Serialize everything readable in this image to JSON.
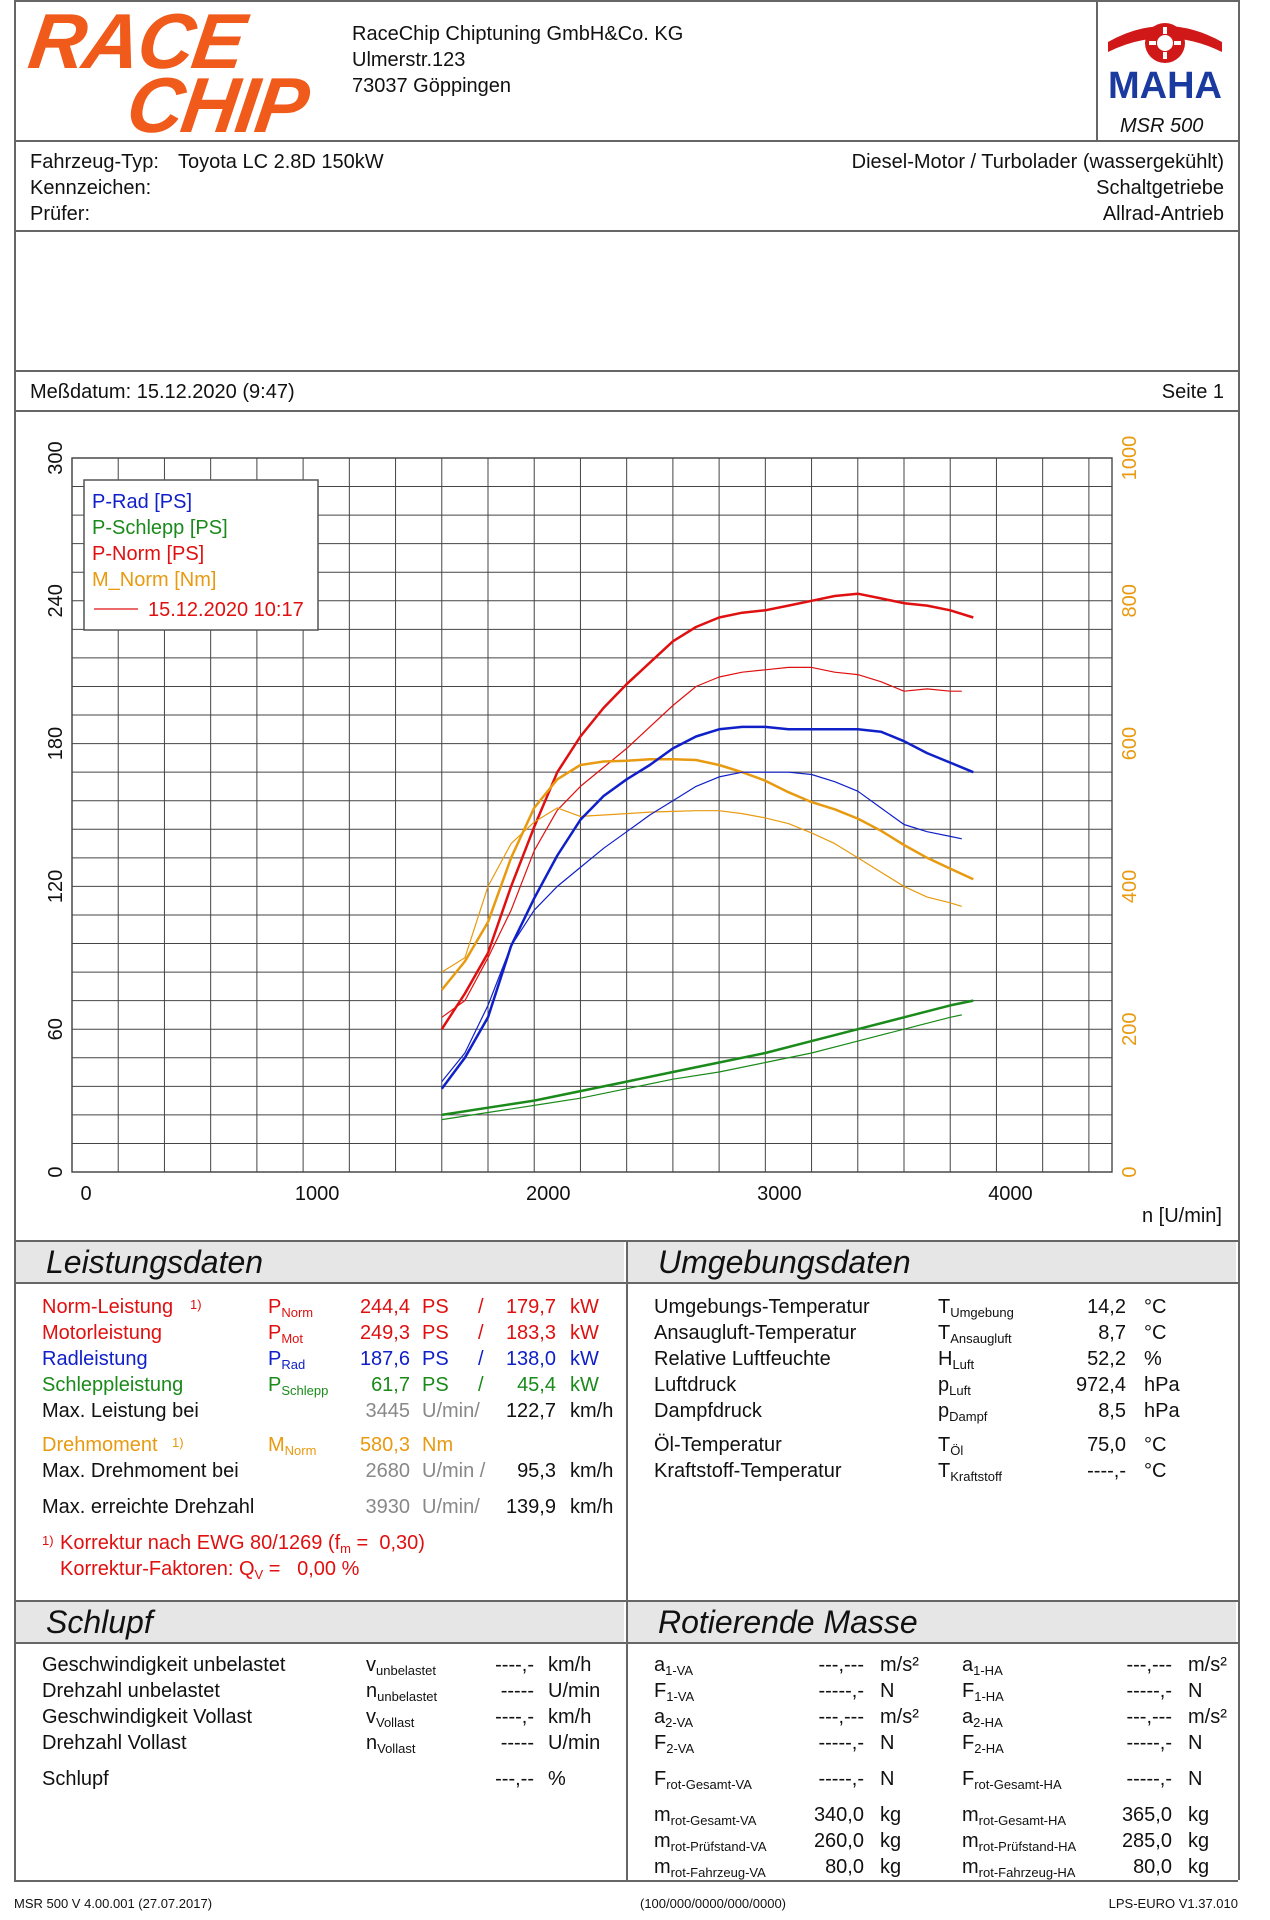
{
  "header": {
    "company": [
      "RaceChip Chiptuning GmbH&Co. KG",
      "Ulmerstr.123",
      "73037 Göppingen"
    ],
    "logo_text": [
      "RACE",
      "CHIP"
    ],
    "maha_logo": "MAHA",
    "device": "MSR 500"
  },
  "vehicle": {
    "type_label": "Fahrzeug-Typ:",
    "type_value": "Toyota LC 2.8D 150kW",
    "plate_label": "Kennzeichen:",
    "inspector_label": "Prüfer:",
    "engine": "Diesel-Motor / Turbolader (wassergekühlt)",
    "gearbox": "Schaltgetriebe",
    "drive": "Allrad-Antrieb"
  },
  "measure": {
    "date_label": "Meßdatum: 15.12.2020 (9:47)",
    "page_label": "Seite 1"
  },
  "chart_data": {
    "type": "line",
    "x_label": "n [U/min]",
    "x_ticks": [
      "0",
      "1000",
      "2000",
      "3000",
      "4000"
    ],
    "xlim": [
      0,
      4500
    ],
    "y_left_ticks": [
      "0",
      "60",
      "120",
      "180",
      "240",
      "300"
    ],
    "ylim_left": [
      0,
      300
    ],
    "y_right_ticks": [
      "0",
      "200",
      "400",
      "600",
      "800",
      "1000"
    ],
    "ylim_right": [
      0,
      1000
    ],
    "legend": [
      {
        "label": "P-Rad [PS]",
        "color": "#1020c8"
      },
      {
        "label": "P-Schlepp [PS]",
        "color": "#1a8a1a"
      },
      {
        "label": "P-Norm [PS]",
        "color": "#e01010"
      },
      {
        "label": "M_Norm [Nm]",
        "color": "#e89a10"
      },
      {
        "label": "15.12.2020 10:17",
        "color": "#e01010"
      }
    ],
    "series": [
      {
        "name": "P-Norm current",
        "axis": "left",
        "color": "#e01010",
        "width": 2.5,
        "x": [
          1600,
          1700,
          1800,
          1900,
          2000,
          2100,
          2200,
          2300,
          2400,
          2500,
          2600,
          2700,
          2800,
          2900,
          3000,
          3100,
          3200,
          3300,
          3400,
          3500,
          3600,
          3700,
          3800,
          3900
        ],
        "y": [
          60,
          75,
          92,
          120,
          145,
          168,
          183,
          195,
          205,
          214,
          223,
          229,
          233,
          235,
          236,
          238,
          240,
          242,
          243,
          241,
          239,
          238,
          236,
          233
        ]
      },
      {
        "name": "P-Norm ref",
        "axis": "left",
        "color": "#e01010",
        "width": 1.2,
        "x": [
          1600,
          1700,
          1800,
          1900,
          2000,
          2100,
          2200,
          2300,
          2400,
          2500,
          2600,
          2700,
          2800,
          2900,
          3000,
          3100,
          3200,
          3300,
          3400,
          3500,
          3600,
          3700,
          3800,
          3850
        ],
        "y": [
          65,
          72,
          90,
          110,
          135,
          152,
          162,
          170,
          178,
          187,
          196,
          204,
          208,
          210,
          211,
          212,
          212,
          210,
          209,
          206,
          202,
          203,
          202,
          202
        ]
      },
      {
        "name": "M_Norm current",
        "axis": "right",
        "color": "#e89a10",
        "width": 2.5,
        "x": [
          1600,
          1700,
          1800,
          1900,
          2000,
          2100,
          2200,
          2300,
          2400,
          2500,
          2600,
          2700,
          2800,
          2900,
          3000,
          3100,
          3200,
          3300,
          3400,
          3500,
          3600,
          3700,
          3800,
          3900
        ],
        "y": [
          255,
          295,
          350,
          440,
          510,
          550,
          570,
          575,
          576,
          578,
          578,
          577,
          570,
          560,
          548,
          532,
          518,
          508,
          495,
          478,
          458,
          440,
          425,
          410
        ]
      },
      {
        "name": "M_Norm ref",
        "axis": "right",
        "color": "#e89a10",
        "width": 1.2,
        "x": [
          1600,
          1700,
          1800,
          1900,
          2000,
          2100,
          2200,
          2300,
          2400,
          2500,
          2600,
          2700,
          2800,
          2900,
          3000,
          3100,
          3200,
          3300,
          3400,
          3500,
          3600,
          3700,
          3800,
          3850
        ],
        "y": [
          280,
          300,
          400,
          460,
          490,
          510,
          498,
          500,
          502,
          504,
          505,
          506,
          506,
          502,
          496,
          488,
          475,
          460,
          440,
          420,
          400,
          385,
          377,
          372
        ]
      },
      {
        "name": "P-Rad current",
        "axis": "left",
        "color": "#1020c8",
        "width": 2.5,
        "x": [
          1600,
          1700,
          1800,
          1900,
          2000,
          2100,
          2200,
          2300,
          2400,
          2500,
          2600,
          2700,
          2800,
          2900,
          3000,
          3100,
          3200,
          3300,
          3400,
          3500,
          3600,
          3700,
          3800,
          3900
        ],
        "y": [
          35,
          48,
          65,
          95,
          115,
          133,
          148,
          158,
          165,
          171,
          178,
          183,
          186,
          187,
          187,
          186,
          186,
          186,
          186,
          185,
          181,
          176,
          172,
          168
        ]
      },
      {
        "name": "P-Rad ref",
        "axis": "left",
        "color": "#1020c8",
        "width": 1.2,
        "x": [
          1600,
          1700,
          1800,
          1900,
          2000,
          2100,
          2200,
          2300,
          2400,
          2500,
          2600,
          2700,
          2800,
          2900,
          3000,
          3100,
          3200,
          3300,
          3400,
          3500,
          3600,
          3700,
          3800,
          3850
        ],
        "y": [
          38,
          50,
          70,
          95,
          110,
          120,
          128,
          136,
          143,
          150,
          156,
          162,
          166,
          168,
          168,
          168,
          167,
          164,
          160,
          153,
          146,
          143,
          141,
          140
        ]
      },
      {
        "name": "P-Schlepp current",
        "axis": "left",
        "color": "#1a8a1a",
        "width": 2.5,
        "x": [
          1600,
          1800,
          2000,
          2200,
          2400,
          2600,
          2800,
          3000,
          3200,
          3400,
          3600,
          3800,
          3900
        ],
        "y": [
          24,
          27,
          30,
          34,
          38,
          42,
          46,
          50,
          55,
          60,
          65,
          70,
          72
        ]
      },
      {
        "name": "P-Schlepp ref",
        "axis": "left",
        "color": "#1a8a1a",
        "width": 1.2,
        "x": [
          1600,
          1800,
          2000,
          2200,
          2400,
          2600,
          2800,
          3000,
          3200,
          3400,
          3600,
          3800,
          3850
        ],
        "y": [
          22,
          25,
          28,
          31,
          35,
          39,
          42,
          46,
          50,
          55,
          60,
          65,
          66
        ]
      }
    ]
  },
  "leistung": {
    "title": "Leistungsdaten",
    "rows": [
      {
        "label": "Norm-Leistung",
        "note": "1)",
        "sym": "P",
        "sub": "Norm",
        "v1": "244,4",
        "u1": "PS",
        "sep": "/",
        "v2": "179,7",
        "u2": "kW"
      },
      {
        "label": "Motorleistung",
        "note": "",
        "sym": "P",
        "sub": "Mot",
        "v1": "249,3",
        "u1": "PS",
        "sep": "/",
        "v2": "183,3",
        "u2": "kW"
      },
      {
        "label": "Radleistung",
        "note": "",
        "sym": "P",
        "sub": "Rad",
        "v1": "187,6",
        "u1": "PS",
        "sep": "/",
        "v2": "138,0",
        "u2": "kW"
      },
      {
        "label": "Schleppleistung",
        "note": "",
        "sym": "P",
        "sub": "Schlepp",
        "v1": "61,7",
        "u1": "PS",
        "sep": "/",
        "v2": "45,4",
        "u2": "kW"
      }
    ],
    "max_power": {
      "label": "Max. Leistung bei",
      "rpm": "3445",
      "rpm_unit": "U/min/",
      "speed": "122,7",
      "speed_unit": "km/h"
    },
    "torque": {
      "label": "Drehmoment",
      "note": "1)",
      "sym": "M",
      "sub": "Norm",
      "value": "580,3",
      "unit": "Nm"
    },
    "max_torque": {
      "label": "Max. Drehmoment bei",
      "rpm": "2680",
      "rpm_unit": "U/min /",
      "speed": "95,3",
      "speed_unit": "km/h"
    },
    "max_rpm": {
      "label": "Max. erreichte Drehzahl",
      "rpm": "3930",
      "rpm_unit": "U/min/",
      "speed": "139,9",
      "speed_unit": "km/h"
    },
    "correction_note": "1)",
    "correction1_text": "Korrektur nach EWG 80/1269 (f",
    "correction1_sub": "m",
    "correction1_tail": " =  0,30)",
    "correction2_text": "Korrektur-Faktoren: Q",
    "correction2_sub": "V",
    "correction2_tail": " =   0,00 %"
  },
  "umgebung": {
    "title": "Umgebungsdaten",
    "rows": [
      {
        "label": "Umgebungs-Temperatur",
        "sym": "T",
        "sub": "Umgebung",
        "value": "14,2",
        "unit": "°C"
      },
      {
        "label": "Ansaugluft-Temperatur",
        "sym": "T",
        "sub": "Ansaugluft",
        "value": "8,7",
        "unit": "°C"
      },
      {
        "label": "Relative Luftfeuchte",
        "sym": "H",
        "sub": "Luft",
        "value": "52,2",
        "unit": "%"
      },
      {
        "label": "Luftdruck",
        "sym": "p",
        "sub": "Luft",
        "value": "972,4",
        "unit": "hPa"
      },
      {
        "label": "Dampfdruck",
        "sym": "p",
        "sub": "Dampf",
        "value": "8,5",
        "unit": "hPa"
      },
      {
        "label": "Öl-Temperatur",
        "sym": "T",
        "sub": "Öl",
        "value": "75,0",
        "unit": "°C"
      },
      {
        "label": "Kraftstoff-Temperatur",
        "sym": "T",
        "sub": "Kraftstoff",
        "value": "----,-",
        "unit": "°C"
      }
    ]
  },
  "schlupf": {
    "title": "Schlupf",
    "rows": [
      {
        "label": "Geschwindigkeit unbelastet",
        "sym": "v",
        "sub": "unbelastet",
        "value": "----,-",
        "unit": "km/h"
      },
      {
        "label": "Drehzahl unbelastet",
        "sym": "n",
        "sub": "unbelastet",
        "value": "-----",
        "unit": "U/min"
      },
      {
        "label": "Geschwindigkeit Vollast",
        "sym": "v",
        "sub": "Vollast",
        "value": "----,-",
        "unit": "km/h"
      },
      {
        "label": "Drehzahl Vollast",
        "sym": "n",
        "sub": "Vollast",
        "value": "-----",
        "unit": "U/min"
      },
      {
        "label": "Schlupf",
        "sym": "",
        "sub": "",
        "value": "---,--",
        "unit": "%"
      }
    ]
  },
  "masse": {
    "title": "Rotierende Masse",
    "va": [
      {
        "sym": "a",
        "sub": "1-VA",
        "value": "---,---",
        "unit": "m/s²"
      },
      {
        "sym": "F",
        "sub": "1-VA",
        "value": "-----,-",
        "unit": "N"
      },
      {
        "sym": "a",
        "sub": "2-VA",
        "value": "---,---",
        "unit": "m/s²"
      },
      {
        "sym": "F",
        "sub": "2-VA",
        "value": "-----,-",
        "unit": "N"
      },
      {
        "sym": "F",
        "sub": "rot-Gesamt-VA",
        "value": "-----,-",
        "unit": "N"
      },
      {
        "sym": "m",
        "sub": "rot-Gesamt-VA",
        "value": "340,0",
        "unit": "kg"
      },
      {
        "sym": "m",
        "sub": "rot-Prüfstand-VA",
        "value": "260,0",
        "unit": "kg"
      },
      {
        "sym": "m",
        "sub": "rot-Fahrzeug-VA",
        "value": "80,0",
        "unit": "kg"
      }
    ],
    "ha": [
      {
        "sym": "a",
        "sub": "1-HA",
        "value": "---,---",
        "unit": "m/s²"
      },
      {
        "sym": "F",
        "sub": "1-HA",
        "value": "-----,-",
        "unit": "N"
      },
      {
        "sym": "a",
        "sub": "2-HA",
        "value": "---,---",
        "unit": "m/s²"
      },
      {
        "sym": "F",
        "sub": "2-HA",
        "value": "-----,-",
        "unit": "N"
      },
      {
        "sym": "F",
        "sub": "rot-Gesamt-HA",
        "value": "-----,-",
        "unit": "N"
      },
      {
        "sym": "m",
        "sub": "rot-Gesamt-HA",
        "value": "365,0",
        "unit": "kg"
      },
      {
        "sym": "m",
        "sub": "rot-Prüfstand-HA",
        "value": "285,0",
        "unit": "kg"
      },
      {
        "sym": "m",
        "sub": "rot-Fahrzeug-HA",
        "value": "80,0",
        "unit": "kg"
      }
    ]
  },
  "footer": {
    "left": "MSR 500 V 4.00.001 (27.07.2017)",
    "center": "(100/000/0000/000/0000)",
    "right": "LPS-EURO V1.37.010"
  }
}
